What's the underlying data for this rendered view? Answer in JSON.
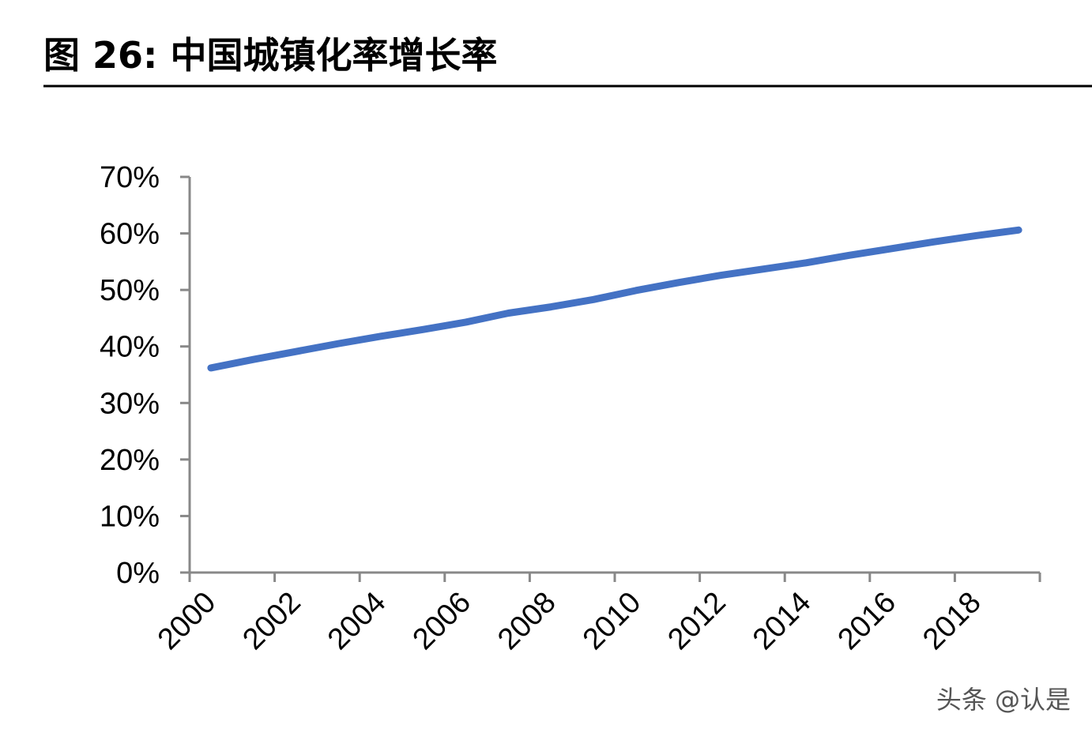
{
  "chart_data": {
    "type": "line",
    "title": "图 26:  中国城镇化率增长率",
    "watermark": "头条 @认是",
    "categories": [
      "2000",
      null,
      "2002",
      null,
      "2004",
      null,
      "2006",
      null,
      "2008",
      null,
      "2010",
      null,
      "2012",
      null,
      "2014",
      null,
      "2016",
      null,
      "2018",
      null
    ],
    "series": [
      {
        "color": "#4472c4",
        "values": [
          36.2,
          37.7,
          39.1,
          40.5,
          41.8,
          43.0,
          44.3,
          45.9,
          47.0,
          48.3,
          49.9,
          51.3,
          52.6,
          53.7,
          54.8,
          56.1,
          57.3,
          58.5,
          59.6,
          60.6
        ]
      }
    ],
    "ylim": [
      0,
      70
    ],
    "yticks": [
      {
        "value": 0,
        "label": "0%"
      },
      {
        "value": 10,
        "label": "10%"
      },
      {
        "value": 20,
        "label": "20%"
      },
      {
        "value": 30,
        "label": "30%"
      },
      {
        "value": 40,
        "label": "40%"
      },
      {
        "value": 50,
        "label": "50%"
      },
      {
        "value": 60,
        "label": "60%"
      },
      {
        "value": 70,
        "label": "70%"
      }
    ],
    "grid": false
  }
}
